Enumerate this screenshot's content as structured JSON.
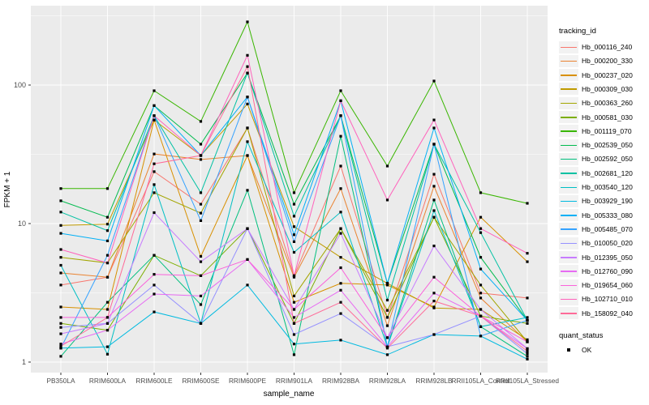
{
  "figure": {
    "x_axis_title": "sample_name",
    "y_axis_title": "FPKM + 1"
  },
  "legend": {
    "tracking_title": "tracking_id",
    "quant_title": "quant_status",
    "quant_entries": [
      {
        "label": "OK",
        "marker": "square",
        "color": "#000000"
      }
    ]
  },
  "colors": {
    "panel_bg": "#EBEBEB",
    "grid_major": "#FFFFFF",
    "grid_minor": "#F7F7F7",
    "axis_text": "#4D4D4D",
    "tick_mark": "#333333",
    "legend_key_bg": "#F2F2F2",
    "point": "#000000"
  },
  "chart_data": {
    "type": "line",
    "title": "",
    "x_axis_label": "sample_name",
    "y_axis_label": "FPKM + 1",
    "y_scale": "log10",
    "y_ticks": [
      1,
      10,
      100
    ],
    "y_minor_ticks": [
      3.162,
      31.62,
      316.2
    ],
    "ylim_approx": [
      0.87,
      330
    ],
    "grid": true,
    "legend_title": "tracking_id",
    "legend_position": "right",
    "point_status_legend": {
      "title": "quant_status",
      "entries": [
        "OK"
      ]
    },
    "categories": [
      "PB350LA",
      "RRIM600LA",
      "RRIM600LE",
      "RRIM600SE",
      "RRIM600PE",
      "RRIM901LA",
      "RRIM928BA",
      "RRIM928LA",
      "RRIM928LB",
      "RRII105LA_Control",
      "RRII105LA_Stressed"
    ],
    "series": [
      {
        "name": "Hb_000116_240",
        "color": "#F8766D",
        "values": [
          3.6,
          4.1,
          23.7,
          13.8,
          49,
          4.2,
          26,
          2.1,
          22.7,
          3.15,
          2.9
        ]
      },
      {
        "name": "Hb_000200_330",
        "color": "#EA8331",
        "values": [
          4.4,
          4.1,
          31.8,
          29,
          31,
          4.1,
          17.9,
          1.83,
          18.6,
          2.9,
          1.4
        ]
      },
      {
        "name": "Hb_000237_020",
        "color": "#D89000",
        "values": [
          2.5,
          2.4,
          56,
          5.8,
          31,
          2.7,
          3.7,
          3.6,
          2.5,
          11.1,
          5.3
        ]
      },
      {
        "name": "Hb_000309_030",
        "color": "#C09B00",
        "values": [
          9.7,
          9.9,
          56,
          31,
          73,
          9.5,
          5.7,
          3.7,
          2.46,
          2.4,
          1.45
        ]
      },
      {
        "name": "Hb_000363_260",
        "color": "#A3A500",
        "values": [
          5.7,
          5.2,
          16.7,
          11.9,
          49,
          3.0,
          9.2,
          2.36,
          11.1,
          3.6,
          1.4
        ]
      },
      {
        "name": "Hb_000581_030",
        "color": "#7CAE00",
        "values": [
          1.9,
          1.7,
          5.9,
          4.2,
          9.2,
          1.9,
          9.2,
          2.1,
          11.1,
          2.15,
          1.9
        ]
      },
      {
        "name": "Hb_001119_070",
        "color": "#39B600",
        "values": [
          17.9,
          17.9,
          91,
          54.6,
          286,
          16.7,
          91,
          26,
          107,
          16.7,
          14
        ]
      },
      {
        "name": "Hb_002539_050",
        "color": "#00BB4E",
        "values": [
          14.6,
          11.1,
          71,
          37.4,
          122,
          13.8,
          60,
          3.7,
          37.4,
          5.7,
          2.0
        ]
      },
      {
        "name": "Hb_002592_050",
        "color": "#00BF7D",
        "values": [
          1.1,
          2.7,
          5.9,
          2.6,
          17.4,
          1.13,
          42.7,
          1.29,
          14.8,
          1.8,
          1.1
        ]
      },
      {
        "name": "Hb_002681_120",
        "color": "#00C1A3",
        "values": [
          12.1,
          8.9,
          60,
          16.7,
          122,
          11.3,
          60,
          2.8,
          37.4,
          8.6,
          2.0
        ]
      },
      {
        "name": "Hb_003540_120",
        "color": "#00BFC4",
        "values": [
          5.0,
          1.14,
          19.1,
          1.9,
          39,
          6.2,
          12.1,
          1.29,
          12.4,
          1.8,
          2.1
        ]
      },
      {
        "name": "Hb_003929_190",
        "color": "#00BAE0",
        "values": [
          1.26,
          1.29,
          2.3,
          1.9,
          3.6,
          1.35,
          1.44,
          1.13,
          1.58,
          1.54,
          1.05
        ]
      },
      {
        "name": "Hb_005333_080",
        "color": "#00B0F6",
        "values": [
          8.5,
          7.5,
          71,
          31,
          82,
          8.3,
          77,
          3.7,
          49,
          4.7,
          2.0
        ]
      },
      {
        "name": "Hb_005485_070",
        "color": "#35A2FF",
        "values": [
          1.26,
          5.9,
          60,
          10.5,
          82,
          7.4,
          60,
          1.29,
          37.4,
          1.54,
          2.0
        ]
      },
      {
        "name": "Hb_010050_020",
        "color": "#9590FF",
        "values": [
          1.78,
          1.9,
          3.6,
          1.9,
          9.2,
          1.58,
          2.24,
          1.29,
          1.58,
          2.15,
          1.15
        ]
      },
      {
        "name": "Hb_012395_050",
        "color": "#C77CFF",
        "values": [
          1.6,
          1.9,
          12,
          5.3,
          9.2,
          2.4,
          8.5,
          1.5,
          6.9,
          2.4,
          1.25
        ]
      },
      {
        "name": "Hb_012760_090",
        "color": "#E76BF3",
        "values": [
          1.35,
          1.7,
          3.1,
          3.0,
          5.5,
          2.1,
          3.3,
          1.29,
          3.15,
          2.15,
          1.25
        ]
      },
      {
        "name": "Hb_019654_060",
        "color": "#FA62DB",
        "values": [
          2.1,
          2.1,
          4.3,
          4.2,
          5.5,
          2.4,
          4.8,
          1.5,
          4.1,
          2.15,
          1.4
        ]
      },
      {
        "name": "Hb_102710_010",
        "color": "#FF62BC",
        "values": [
          6.5,
          5.2,
          60,
          31,
          164,
          4.2,
          77,
          14.8,
          56,
          9.2,
          6.1
        ]
      },
      {
        "name": "Hb_158092_040",
        "color": "#FF6A98",
        "values": [
          1.3,
          2.1,
          27,
          31,
          136,
          1.9,
          2.7,
          1.26,
          2.76,
          2.15,
          1.2
        ]
      }
    ]
  }
}
